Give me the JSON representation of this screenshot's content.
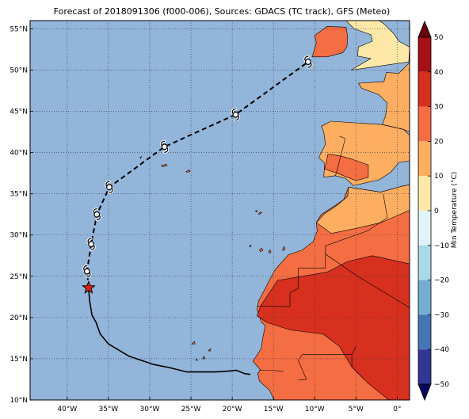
{
  "title": "Forecast of 2018091306 (f000-006), Sources: GDACS (TC track), GFS (Meteo)",
  "map": {
    "lon_range": [
      -44.5,
      1.5
    ],
    "lat_range": [
      10,
      56
    ],
    "lon_ticks": [
      {
        "value": -40,
        "label": "40°W"
      },
      {
        "value": -35,
        "label": "35°W"
      },
      {
        "value": -30,
        "label": "30°W"
      },
      {
        "value": -25,
        "label": "25°W"
      },
      {
        "value": -20,
        "label": "20°W"
      },
      {
        "value": -15,
        "label": "15°W"
      },
      {
        "value": -10,
        "label": "10°W"
      },
      {
        "value": -5,
        "label": "5°W"
      },
      {
        "value": 0,
        "label": "0°"
      }
    ],
    "lat_ticks": [
      {
        "value": 10,
        "label": "10°N"
      },
      {
        "value": 15,
        "label": "15°N"
      },
      {
        "value": 20,
        "label": "20°N"
      },
      {
        "value": 25,
        "label": "25°N"
      },
      {
        "value": 30,
        "label": "30°N"
      },
      {
        "value": 35,
        "label": "35°N"
      },
      {
        "value": 40,
        "label": "40°N"
      },
      {
        "value": 45,
        "label": "45°N"
      },
      {
        "value": 50,
        "label": "50°N"
      },
      {
        "value": 55,
        "label": "55°N"
      }
    ],
    "ocean_color": "#92b5d9",
    "grid": true
  },
  "track": {
    "past": [
      [
        -17.8,
        13.1
      ],
      [
        -18.5,
        13.2
      ],
      [
        -19.5,
        13.6
      ],
      [
        -20.5,
        13.5
      ],
      [
        -22,
        13.4
      ],
      [
        -23.5,
        13.4
      ],
      [
        -25.5,
        13.4
      ],
      [
        -27.5,
        13.9
      ],
      [
        -29.5,
        14.3
      ],
      [
        -31,
        14.8
      ],
      [
        -32.5,
        15.3
      ],
      [
        -34,
        16.2
      ],
      [
        -35,
        16.8
      ],
      [
        -36,
        18.0
      ],
      [
        -36.5,
        19.4
      ],
      [
        -37.0,
        20.3
      ],
      [
        -37.3,
        22.1
      ],
      [
        -37.4,
        23.6
      ]
    ],
    "current": [
      -37.4,
      23.6
    ],
    "forecast": [
      [
        -37.4,
        23.6
      ],
      [
        -37.6,
        25.6
      ],
      [
        -37.1,
        28.9
      ],
      [
        -36.4,
        32.5
      ],
      [
        -34.9,
        35.8
      ],
      [
        -28.2,
        40.7
      ],
      [
        -19.6,
        44.6
      ],
      [
        -10.8,
        51.0
      ]
    ],
    "markers": [
      [
        -37.6,
        25.6
      ],
      [
        -37.1,
        28.9
      ],
      [
        -36.4,
        32.5
      ],
      [
        -34.9,
        35.8
      ],
      [
        -28.2,
        40.7
      ],
      [
        -19.6,
        44.6
      ],
      [
        -10.8,
        51.0
      ]
    ],
    "star_color": "#d82020"
  },
  "colorbar": {
    "label": "Min Temperature (°C)",
    "min": -50,
    "max": 50,
    "ticks": [
      {
        "value": 50,
        "label": "50"
      },
      {
        "value": 40,
        "label": "40"
      },
      {
        "value": 30,
        "label": "30"
      },
      {
        "value": 20,
        "label": "20"
      },
      {
        "value": 10,
        "label": "10"
      },
      {
        "value": 0,
        "label": "0"
      },
      {
        "value": -10,
        "label": "−10"
      },
      {
        "value": -20,
        "label": "−20"
      },
      {
        "value": -30,
        "label": "−30"
      },
      {
        "value": -40,
        "label": "−40"
      },
      {
        "value": -50,
        "label": "−50"
      }
    ],
    "bins": [
      {
        "from": 40,
        "to": 50,
        "color": "#a50f15"
      },
      {
        "from": 30,
        "to": 40,
        "color": "#d7301f"
      },
      {
        "from": 20,
        "to": 30,
        "color": "#f46d43"
      },
      {
        "from": 10,
        "to": 20,
        "color": "#fdae61"
      },
      {
        "from": 0,
        "to": 10,
        "color": "#fee8a8"
      },
      {
        "from": -10,
        "to": 0,
        "color": "#e0f3f8"
      },
      {
        "from": -20,
        "to": -10,
        "color": "#abd9e9"
      },
      {
        "from": -30,
        "to": -20,
        "color": "#74add1"
      },
      {
        "from": -40,
        "to": -30,
        "color": "#4575b4"
      },
      {
        "from": -50,
        "to": -40,
        "color": "#313695"
      }
    ],
    "over_color": "#67000d",
    "under_color": "#08085e"
  },
  "land": {
    "ireland": {
      "color": "#f46d43",
      "points": [
        [
          -10.3,
          51.6
        ],
        [
          -9.8,
          53.3
        ],
        [
          -10.0,
          54.2
        ],
        [
          -8.5,
          55.3
        ],
        [
          -6.2,
          55.2
        ],
        [
          -6.0,
          54.0
        ],
        [
          -6.1,
          52.8
        ],
        [
          -6.6,
          52.1
        ],
        [
          -8.5,
          51.6
        ]
      ]
    },
    "britain": {
      "color": "#fee8a8",
      "points": [
        [
          -5.6,
          50.0
        ],
        [
          -3.5,
          50.3
        ],
        [
          1.4,
          51.0
        ],
        [
          1.5,
          52.8
        ],
        [
          0.2,
          53.5
        ],
        [
          -0.5,
          54.5
        ],
        [
          -1.6,
          55.6
        ],
        [
          -2.2,
          56.0
        ],
        [
          -6.2,
          56.0
        ],
        [
          -5.2,
          55.0
        ],
        [
          -3.2,
          54.3
        ],
        [
          -3.0,
          53.5
        ],
        [
          -4.7,
          52.8
        ],
        [
          -4.8,
          51.7
        ],
        [
          -3.2,
          51.4
        ]
      ]
    },
    "france": {
      "color": "#fdae61",
      "points": [
        [
          1.5,
          50.9
        ],
        [
          0.2,
          49.6
        ],
        [
          -1.3,
          49.7
        ],
        [
          -1.6,
          48.6
        ],
        [
          -4.7,
          48.4
        ],
        [
          -4.3,
          47.8
        ],
        [
          -2.2,
          47.0
        ],
        [
          -1.2,
          46.0
        ],
        [
          -1.4,
          44.5
        ],
        [
          -1.8,
          43.4
        ],
        [
          0.8,
          42.8
        ],
        [
          1.5,
          42.5
        ]
      ]
    },
    "iberia": {
      "color": "#fdae61",
      "points": [
        [
          -9.2,
          43.2
        ],
        [
          -8.0,
          43.8
        ],
        [
          -3.5,
          43.5
        ],
        [
          -1.8,
          43.4
        ],
        [
          0.8,
          42.8
        ],
        [
          1.5,
          42.1
        ],
        [
          1.5,
          39.0
        ],
        [
          0.2,
          38.8
        ],
        [
          -0.8,
          37.6
        ],
        [
          -2.2,
          36.7
        ],
        [
          -5.3,
          36.0
        ],
        [
          -6.3,
          36.9
        ],
        [
          -7.5,
          37.2
        ],
        [
          -8.9,
          37.0
        ],
        [
          -8.8,
          38.7
        ],
        [
          -9.5,
          39.4
        ],
        [
          -8.7,
          41.0
        ],
        [
          -8.9,
          42.5
        ]
      ]
    },
    "iberia_warm": {
      "color": "#f46d43",
      "points": [
        [
          -8.8,
          38.0
        ],
        [
          -7.0,
          37.4
        ],
        [
          -5.0,
          36.6
        ],
        [
          -3.5,
          37.0
        ],
        [
          -3.5,
          38.5
        ],
        [
          -5.5,
          39.2
        ],
        [
          -6.9,
          39.6
        ],
        [
          -8.4,
          39.8
        ],
        [
          -8.6,
          38.8
        ]
      ]
    },
    "africa": {
      "color": "#f46d43",
      "points": [
        [
          -5.9,
          35.8
        ],
        [
          -2.0,
          35.2
        ],
        [
          0.5,
          35.9
        ],
        [
          1.5,
          36.1
        ],
        [
          1.5,
          10
        ],
        [
          -14.9,
          10
        ],
        [
          -15.5,
          11.2
        ],
        [
          -16.7,
          12.3
        ],
        [
          -16.9,
          13.2
        ],
        [
          -16.6,
          13.7
        ],
        [
          -17.5,
          14.7
        ],
        [
          -16.5,
          16.2
        ],
        [
          -16.3,
          17.5
        ],
        [
          -16.0,
          19.0
        ],
        [
          -16.5,
          19.5
        ],
        [
          -17.0,
          21.0
        ],
        [
          -16.8,
          22.0
        ],
        [
          -16.0,
          23.5
        ],
        [
          -15.5,
          24.5
        ],
        [
          -14.8,
          25.8
        ],
        [
          -14.0,
          26.7
        ],
        [
          -13.2,
          27.6
        ],
        [
          -11.5,
          28.2
        ],
        [
          -10.2,
          29.2
        ],
        [
          -9.7,
          30.5
        ],
        [
          -9.8,
          31.5
        ],
        [
          -9.2,
          32.5
        ],
        [
          -7.5,
          33.6
        ],
        [
          -6.5,
          34.3
        ]
      ]
    },
    "africa_cool": {
      "color": "#fdae61",
      "points": [
        [
          -9.8,
          31.5
        ],
        [
          -8.8,
          32.6
        ],
        [
          -7.3,
          33.6
        ],
        [
          -6.0,
          34.7
        ],
        [
          -5.9,
          35.8
        ],
        [
          -2.0,
          35.2
        ],
        [
          0.5,
          35.9
        ],
        [
          1.5,
          36.1
        ],
        [
          1.5,
          33.0
        ],
        [
          -2.0,
          31.5
        ],
        [
          -5.0,
          30.8
        ],
        [
          -8.0,
          30.2
        ]
      ]
    },
    "africa_hot": {
      "color": "#d7301f",
      "points": [
        [
          -1.0,
          10
        ],
        [
          1.5,
          10
        ],
        [
          1.5,
          26.5
        ],
        [
          -3.0,
          27.5
        ],
        [
          -6.0,
          26.8
        ],
        [
          -8.5,
          25.5
        ],
        [
          -11.5,
          25.0
        ],
        [
          -14.5,
          24.5
        ],
        [
          -16.5,
          21.5
        ],
        [
          -17.0,
          20.2
        ],
        [
          -15.8,
          19.4
        ],
        [
          -13.0,
          18.5
        ],
        [
          -9.0,
          18.0
        ],
        [
          -7.0,
          16.5
        ],
        [
          -5.5,
          14.0
        ],
        [
          -3.5,
          12.0
        ]
      ]
    },
    "islands": [
      {
        "points": [
          [
            -16.8,
            32.6
          ],
          [
            -16.6,
            32.8
          ],
          [
            -16.4,
            32.7
          ],
          [
            -16.7,
            32.5
          ]
        ]
      },
      {
        "points": [
          [
            -15.6,
            28.0
          ],
          [
            -15.4,
            28.2
          ],
          [
            -15.3,
            27.9
          ],
          [
            -15.5,
            27.8
          ]
        ]
      },
      {
        "points": [
          [
            -16.7,
            28.2
          ],
          [
            -16.4,
            28.4
          ],
          [
            -16.3,
            28.1
          ],
          [
            -16.6,
            28.0
          ]
        ]
      },
      {
        "points": [
          [
            -13.9,
            28.2
          ],
          [
            -13.7,
            28.6
          ],
          [
            -13.6,
            28.3
          ],
          [
            -13.8,
            28.1
          ]
        ]
      },
      {
        "points": [
          [
            -17.9,
            28.6
          ],
          [
            -17.8,
            28.8
          ],
          [
            -17.7,
            28.6
          ]
        ]
      },
      {
        "points": [
          [
            -25.6,
            37.7
          ],
          [
            -25.2,
            37.9
          ],
          [
            -25.1,
            37.7
          ],
          [
            -25.5,
            37.6
          ]
        ]
      },
      {
        "points": [
          [
            -28.6,
            38.4
          ],
          [
            -28.0,
            38.6
          ],
          [
            -27.9,
            38.4
          ],
          [
            -28.4,
            38.3
          ]
        ]
      },
      {
        "points": [
          [
            -24.9,
            16.8
          ],
          [
            -24.6,
            17.1
          ],
          [
            -24.5,
            16.8
          ]
        ]
      },
      {
        "points": [
          [
            -23.6,
            15.0
          ],
          [
            -23.4,
            15.3
          ],
          [
            -23.3,
            15.0
          ]
        ]
      },
      {
        "points": [
          [
            -22.9,
            16.0
          ],
          [
            -22.6,
            16.2
          ],
          [
            -22.7,
            15.9
          ]
        ]
      },
      {
        "points": [
          [
            -24.4,
            14.8
          ],
          [
            -24.3,
            15.0
          ],
          [
            -24.2,
            14.8
          ]
        ]
      },
      {
        "points": [
          [
            -31.2,
            39.4
          ],
          [
            -31.0,
            39.5
          ],
          [
            -31.1,
            39.3
          ]
        ]
      },
      {
        "points": [
          [
            -17.2,
            32.9
          ],
          [
            -17.0,
            33.0
          ],
          [
            -17.0,
            32.8
          ]
        ]
      }
    ],
    "borders": [
      [
        [
          -17.0,
          21.4
        ],
        [
          -13.0,
          21.3
        ],
        [
          -13.0,
          23.0
        ],
        [
          -12.0,
          23.5
        ],
        [
          -12.0,
          26.0
        ],
        [
          -8.7,
          26.0
        ],
        [
          -8.7,
          27.7
        ],
        [
          -4.8,
          25.0
        ],
        [
          1.5,
          21.2
        ]
      ],
      [
        [
          -8.7,
          27.7
        ],
        [
          -8.7,
          28.7
        ],
        [
          -3.6,
          30.5
        ],
        [
          -1.2,
          32.1
        ],
        [
          -1.7,
          35.0
        ]
      ],
      [
        [
          -5.0,
          16.5
        ],
        [
          -5.5,
          15.5
        ],
        [
          -5.5,
          14.0
        ],
        [
          -4.0,
          12.5
        ]
      ],
      [
        [
          -12.0,
          14.8
        ],
        [
          -11.5,
          15.5
        ],
        [
          -9.5,
          15.5
        ],
        [
          -5.5,
          15.5
        ]
      ],
      [
        [
          -12.0,
          14.8
        ],
        [
          -11.0,
          12.5
        ],
        [
          -12.0,
          12.4
        ]
      ],
      [
        [
          -16.7,
          13.6
        ],
        [
          -15.5,
          13.6
        ],
        [
          -13.8,
          13.5
        ]
      ],
      [
        [
          -7.0,
          42.0
        ],
        [
          -6.3,
          41.7
        ],
        [
          -7.0,
          39.0
        ],
        [
          -7.3,
          37.8
        ],
        [
          -7.5,
          37.2
        ]
      ],
      [
        [
          -1.8,
          43.4
        ],
        [
          0.8,
          42.8
        ]
      ]
    ]
  }
}
